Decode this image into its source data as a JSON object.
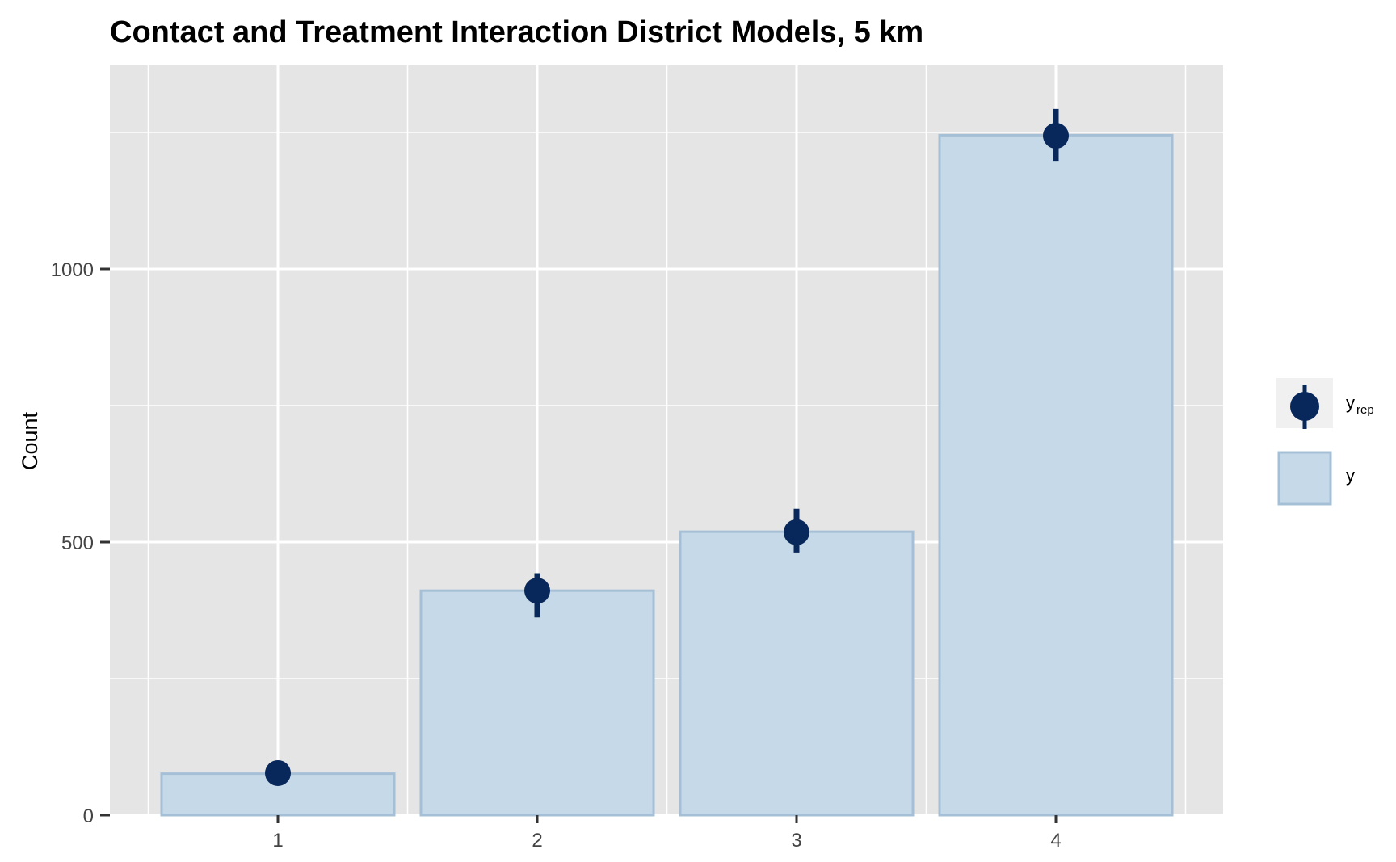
{
  "chart_data": {
    "type": "bar",
    "title": "Contact and Treatment Interaction District Models, 5 km",
    "xlabel": "",
    "ylabel": "Count",
    "categories": [
      "1",
      "2",
      "3",
      "4"
    ],
    "yticks": [
      0,
      500,
      1000
    ],
    "ylim": [
      0,
      1250
    ],
    "grid": true,
    "legend_position": "right",
    "series": [
      {
        "name": "y",
        "kind": "bar",
        "values": [
          76,
          411,
          519,
          1245
        ]
      },
      {
        "name": "y_rep",
        "kind": "point-interval",
        "values": [
          77,
          411,
          518,
          1244
        ],
        "lower": [
          70,
          362,
          481,
          1198
        ],
        "upper": [
          85,
          443,
          561,
          1293
        ]
      }
    ],
    "legend": {
      "y_rep_main": "y",
      "y_rep_sub": "rep",
      "y": "y"
    },
    "colors": {
      "panel_bg": "#e5e5e5",
      "grid": "#ffffff",
      "bar_fill": "#c6d9e8",
      "bar_stroke": "#a5c0d6",
      "point": "#08275a",
      "legend_key_bg": "#f0f0f0"
    }
  }
}
